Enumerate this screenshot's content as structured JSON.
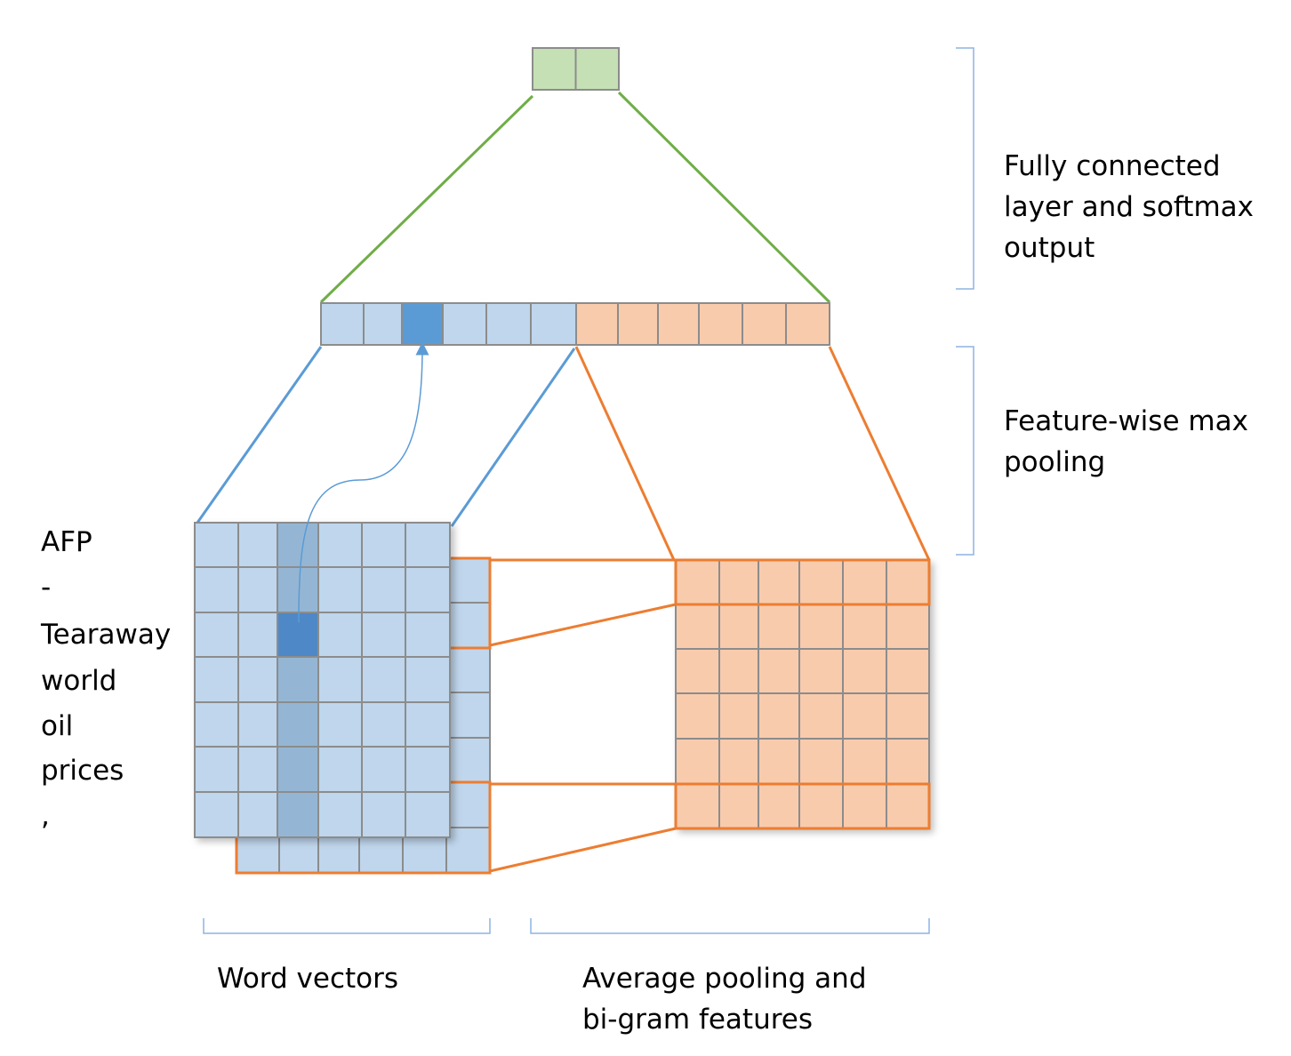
{
  "words": [
    "AFP",
    "-",
    "Tearaway",
    "world",
    "oil",
    "prices",
    ","
  ],
  "labels": {
    "fully_connected": [
      "Fully connected",
      "layer and softmax",
      "output"
    ],
    "max_pooling": [
      "Feature-wise max",
      "pooling"
    ],
    "word_vectors": "Word vectors",
    "average_pooling": [
      "Average pooling and",
      "bi-gram features"
    ]
  },
  "colors": {
    "blue_cell": "#bfd6ec",
    "blue_highlight": "#5b9bd5",
    "blue_column": "#94b6d4",
    "blue_line": "#5b9bd5",
    "orange_cell": "#f8cbad",
    "orange_line": "#ed7d31",
    "green_cell": "#c5e0b4",
    "green_line": "#70ad47",
    "grid_line": "#8c8c8c",
    "bracket": "#8db3e2"
  }
}
